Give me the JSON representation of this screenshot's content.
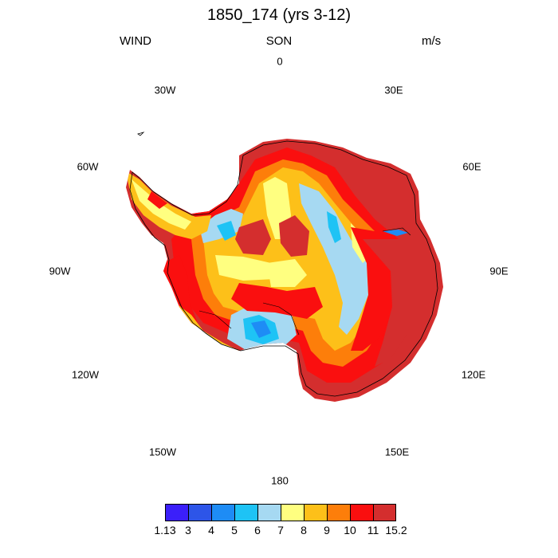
{
  "header": {
    "title": "1850_174 (yrs 3-12)",
    "left_label": "WIND",
    "center_label": "SON",
    "right_label": "m/s"
  },
  "longitude_labels": [
    "0",
    "30E",
    "60E",
    "90E",
    "120E",
    "150E",
    "180",
    "150W",
    "120W",
    "90W",
    "60W",
    "30W"
  ],
  "colorbar": {
    "labels": [
      "1.13",
      "3",
      "4",
      "5",
      "6",
      "7",
      "8",
      "9",
      "10",
      "11",
      "15.2"
    ],
    "colors": [
      "#3b1ffa",
      "#2d55e8",
      "#1e8cf5",
      "#1ec3f5",
      "#a6d9f2",
      "#ffff80",
      "#fdc019",
      "#fd7e0a",
      "#fa0f0f",
      "#d42e2e"
    ]
  },
  "colors": {
    "land_outline": "#000000",
    "background": "#ffffff"
  }
}
